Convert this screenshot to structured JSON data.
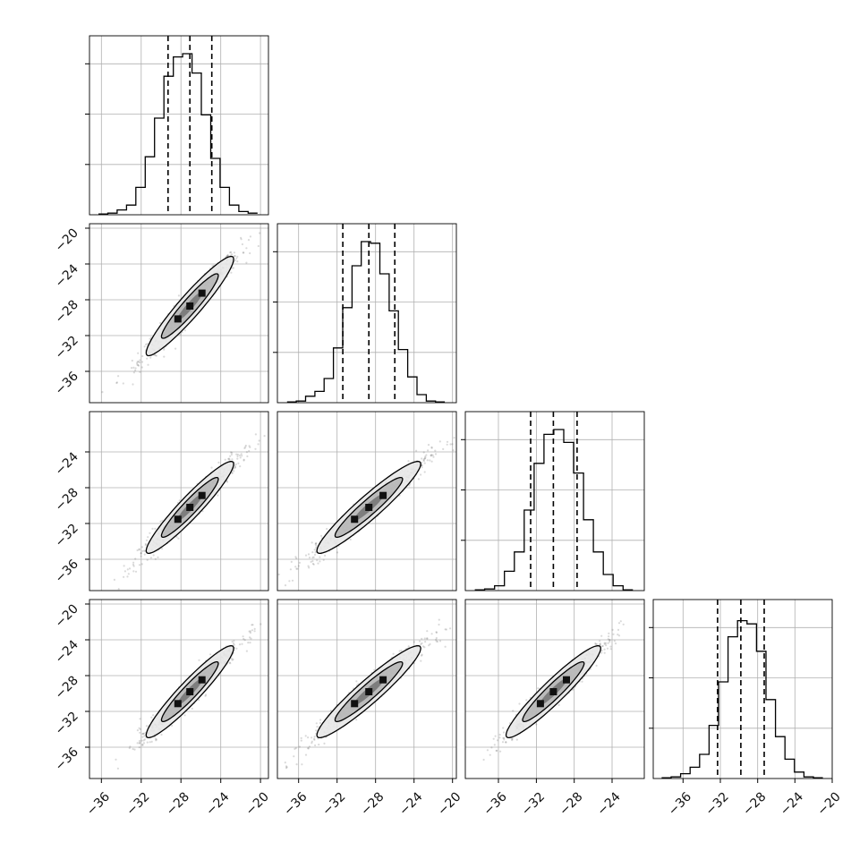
{
  "chart_data": {
    "type": "corner",
    "dims": 4,
    "hist_quantile_lines": [
      [
        -29.3,
        -27.1,
        -24.9
      ],
      [
        -31.4,
        -28.7,
        -26.0
      ],
      [
        -32.6,
        -30.2,
        -27.7
      ],
      [
        -32.3,
        -29.8,
        -27.3
      ]
    ],
    "hist_heights": [
      [
        0.005,
        0.01,
        0.03,
        0.06,
        0.17,
        0.36,
        0.6,
        0.86,
        0.98,
        1.0,
        0.88,
        0.62,
        0.35,
        0.17,
        0.06,
        0.02,
        0.01
      ],
      [
        0.005,
        0.01,
        0.04,
        0.07,
        0.15,
        0.34,
        0.59,
        0.85,
        1.0,
        0.99,
        0.8,
        0.57,
        0.33,
        0.16,
        0.05,
        0.01,
        0.005
      ],
      [
        0.005,
        0.01,
        0.03,
        0.12,
        0.24,
        0.5,
        0.79,
        0.97,
        1.0,
        0.92,
        0.73,
        0.44,
        0.24,
        0.1,
        0.03,
        0.005
      ],
      [
        0.005,
        0.01,
        0.03,
        0.07,
        0.15,
        0.33,
        0.6,
        0.88,
        0.98,
        0.96,
        0.79,
        0.49,
        0.26,
        0.12,
        0.04,
        0.01,
        0.005
      ]
    ],
    "hist_x_start": [
      -36.3,
      -37.2,
      -38.5,
      -38.3
    ],
    "hist_x_end": [
      -20.3,
      -20.8,
      -21.8,
      -21.0
    ],
    "means": [
      -27.1,
      -28.7,
      -30.2,
      -29.8
    ],
    "sds": [
      2.2,
      2.7,
      2.5,
      2.5
    ],
    "correlation": 0.97,
    "panel_x_ranges": [
      [
        -37.2,
        -19.2
      ],
      [
        -38.2,
        -19.6
      ],
      [
        -39.5,
        -20.6
      ],
      [
        -39.2,
        -20.0
      ]
    ],
    "panel_y_ranges": [
      [
        -39.5,
        -19.5
      ],
      [
        -39.5,
        -19.5
      ],
      [
        -39.5,
        -19.5
      ]
    ],
    "x_ticks": [
      [
        -36,
        -32,
        -28,
        -24,
        -20
      ],
      [
        -36,
        -32,
        -28,
        -24,
        -20
      ],
      [
        -36,
        -32,
        -28,
        -24
      ],
      [
        -36,
        -32,
        -28,
        -24,
        -20
      ]
    ],
    "x_tick_labels": [
      [
        "−36",
        "−32",
        "−28",
        "−24",
        "−20"
      ],
      [
        "−36",
        "−32",
        "−28",
        "−24",
        "−20"
      ],
      [
        "−36",
        "−32",
        "−28",
        "−24"
      ],
      [
        "−36",
        "−32",
        "−28",
        "−24",
        "−20"
      ]
    ],
    "y_ticks": [
      [
        -20,
        -24,
        -28,
        -32,
        -36
      ],
      [
        -24,
        -28,
        -32,
        -36
      ],
      [
        -20,
        -24,
        -28,
        -32,
        -36
      ]
    ],
    "y_tick_labels": [
      [
        "−20",
        "−24",
        "−28",
        "−32",
        "−36"
      ],
      [
        "−24",
        "−28",
        "−32",
        "−36"
      ],
      [
        "−20",
        "−24",
        "−28",
        "−32",
        "−36"
      ]
    ],
    "grid": true,
    "colors": {
      "line": "#000000",
      "grid": "#b0b0b0",
      "points": "#333333"
    }
  }
}
